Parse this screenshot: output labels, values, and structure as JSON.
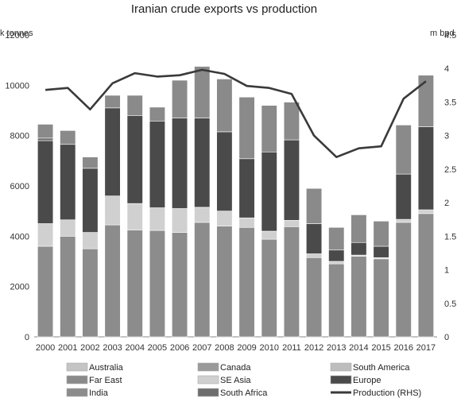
{
  "chart_data": {
    "type": "bar",
    "title": "Iranian crude exports vs production",
    "y_left_label": "k tonnes",
    "y_right_label": "m bpd",
    "ylim_left": [
      0,
      12000
    ],
    "ylim_right": [
      0,
      4.5
    ],
    "yticks_left": [
      "0",
      "2000",
      "4000",
      "6000",
      "8000",
      "10000",
      "12000"
    ],
    "yticks_right": [
      "0",
      "0.5",
      "1",
      "1.5",
      "2",
      "2.5",
      "3",
      "3.5",
      "4",
      "4.5"
    ],
    "categories": [
      "2000",
      "2001",
      "2002",
      "2003",
      "2004",
      "2005",
      "2006",
      "2007",
      "2008",
      "2009",
      "2010",
      "2011",
      "2012",
      "2013",
      "2014",
      "2015",
      "2016",
      "2017"
    ],
    "series": [
      {
        "name": "India",
        "color": "#8c8c8c",
        "values": [
          3600,
          4000,
          3500,
          4450,
          4250,
          4230,
          4150,
          4550,
          4400,
          4350,
          3880,
          4380,
          3150,
          2900,
          3200,
          3100,
          4550,
          4900
        ]
      },
      {
        "name": "Australia",
        "color": "#c4c4c4",
        "values": [
          0,
          0,
          0,
          0,
          0,
          0,
          0,
          0,
          0,
          0,
          0,
          0,
          0,
          0,
          0,
          0,
          0,
          0
        ]
      },
      {
        "name": "SE Asia",
        "color": "#d0d0d0",
        "values": [
          900,
          650,
          650,
          1150,
          1050,
          900,
          950,
          600,
          600,
          380,
          320,
          250,
          150,
          100,
          50,
          50,
          120,
          150
        ]
      },
      {
        "name": "South America",
        "color": "#bdbdbd",
        "values": [
          0,
          0,
          0,
          0,
          0,
          0,
          0,
          0,
          0,
          0,
          0,
          0,
          0,
          0,
          0,
          0,
          0,
          0
        ]
      },
      {
        "name": "Europe",
        "color": "#4a4a4a",
        "values": [
          3300,
          3000,
          2550,
          3500,
          3500,
          3450,
          3600,
          3550,
          3150,
          2350,
          3150,
          3200,
          1200,
          450,
          500,
          450,
          1800,
          3300
        ]
      },
      {
        "name": "Canada",
        "color": "#9a9a9a",
        "values": [
          0,
          0,
          0,
          0,
          0,
          0,
          0,
          0,
          0,
          0,
          0,
          0,
          0,
          0,
          0,
          0,
          0,
          0
        ]
      },
      {
        "name": "South Africa",
        "color": "#6e6e6e",
        "values": [
          100,
          0,
          0,
          0,
          0,
          0,
          0,
          0,
          0,
          0,
          0,
          0,
          0,
          0,
          0,
          0,
          0,
          0
        ]
      },
      {
        "name": "Far East",
        "color": "#8a8a8a",
        "values": [
          550,
          550,
          450,
          500,
          800,
          550,
          1500,
          2050,
          2100,
          2450,
          1850,
          1500,
          1400,
          900,
          1100,
          1000,
          1950,
          2050
        ]
      }
    ],
    "line": {
      "name": "Production (RHS)",
      "color": "#3a3a3a",
      "axis": "right",
      "values": [
        3.68,
        3.71,
        3.39,
        3.78,
        3.93,
        3.88,
        3.9,
        3.98,
        3.92,
        3.74,
        3.71,
        3.62,
        3.0,
        2.68,
        2.81,
        2.84,
        3.55,
        3.81
      ]
    },
    "legend": {
      "position": "bottom",
      "entries": [
        {
          "name": "Australia",
          "color": "#c4c4c4",
          "kind": "swatch"
        },
        {
          "name": "Canada",
          "color": "#9a9a9a",
          "kind": "swatch"
        },
        {
          "name": "South America",
          "color": "#bdbdbd",
          "kind": "swatch"
        },
        {
          "name": "Far East",
          "color": "#8a8a8a",
          "kind": "swatch"
        },
        {
          "name": "SE Asia",
          "color": "#d0d0d0",
          "kind": "swatch"
        },
        {
          "name": "Europe",
          "color": "#4a4a4a",
          "kind": "swatch"
        },
        {
          "name": "India",
          "color": "#8c8c8c",
          "kind": "swatch"
        },
        {
          "name": "South Africa",
          "color": "#6e6e6e",
          "kind": "swatch"
        },
        {
          "name": "Production (RHS)",
          "color": "#3a3a3a",
          "kind": "line"
        }
      ]
    },
    "grid": false
  }
}
